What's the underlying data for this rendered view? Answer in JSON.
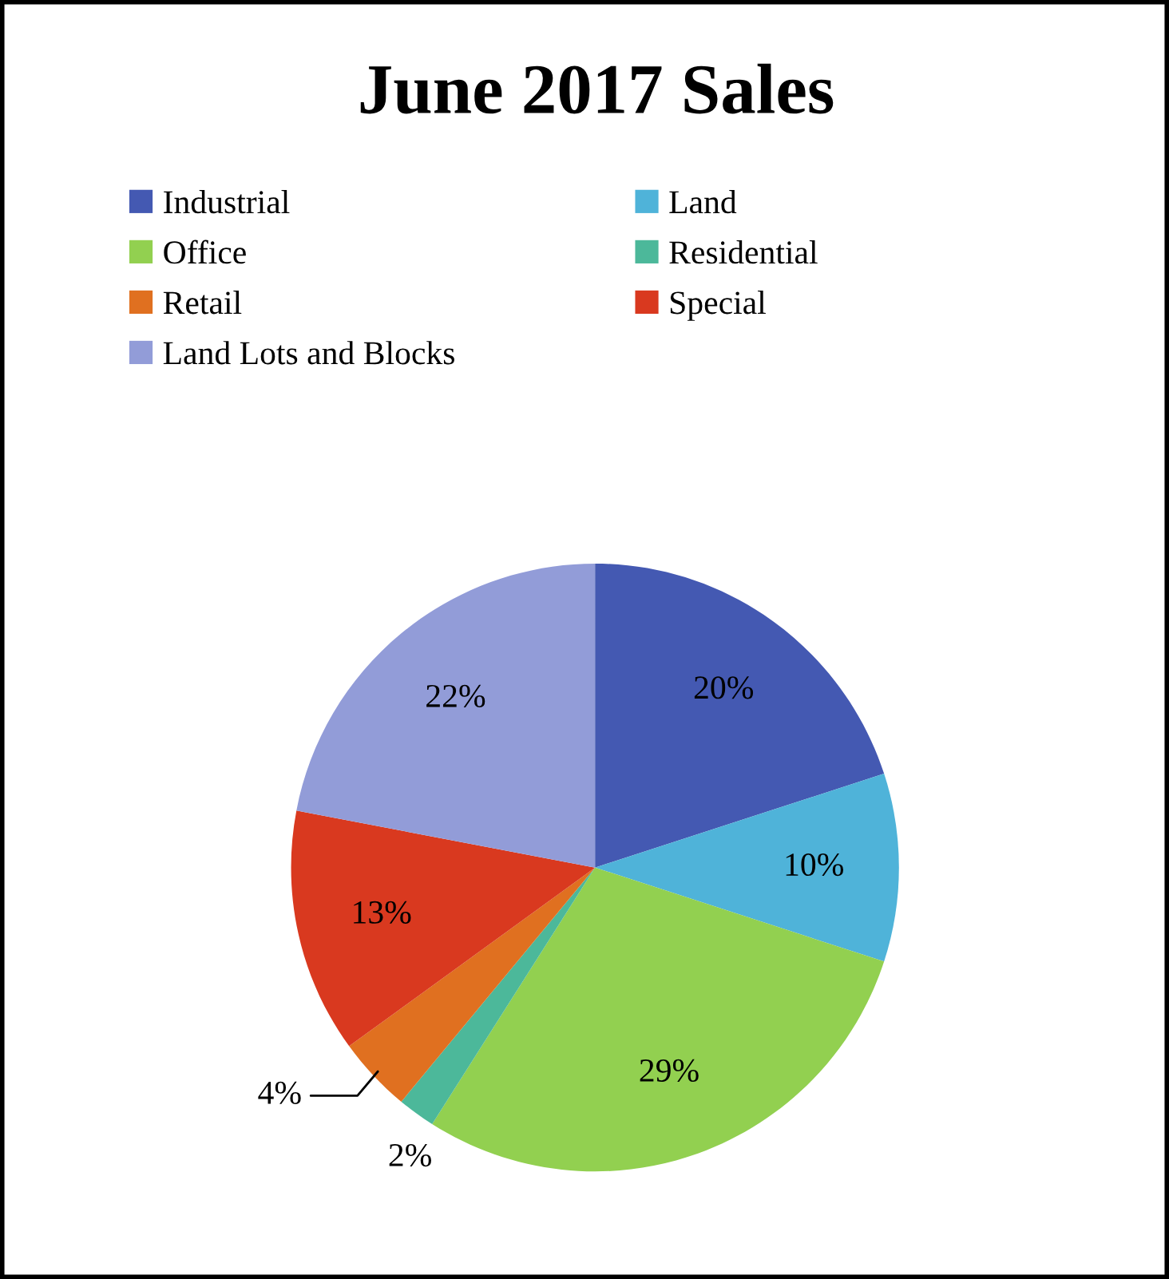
{
  "chart_data": {
    "type": "pie",
    "title": "June 2017 Sales",
    "categories": [
      "Industrial",
      "Land",
      "Office",
      "Residential",
      "Retail",
      "Special",
      "Land Lots and Blocks"
    ],
    "values": [
      20,
      10,
      29,
      2,
      4,
      13,
      22
    ],
    "value_labels": [
      "20%",
      "10%",
      "29%",
      "2%",
      "4%",
      "13%",
      "22%"
    ],
    "colors": [
      "#4459b2",
      "#4fb3d9",
      "#92d050",
      "#4cb89a",
      "#e07020",
      "#d9391f",
      "#929cd8"
    ],
    "legend": "top"
  }
}
